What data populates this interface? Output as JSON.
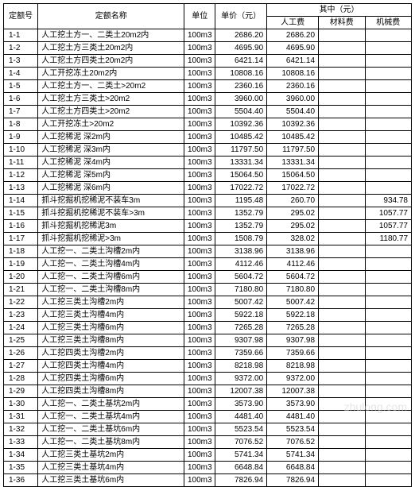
{
  "table": {
    "headers": {
      "id": "定额号",
      "name": "定额名称",
      "unit": "单位",
      "price": "单价（元）",
      "group": "其中（元）",
      "labor": "人工费",
      "material": "材料费",
      "mech": "机械费"
    },
    "rows": [
      [
        "1-1",
        "人工挖土方一、二类土20m2内",
        "100m3",
        "2686.20",
        "2686.20",
        "",
        ""
      ],
      [
        "1-2",
        "人工挖土方三类土20m2内",
        "100m3",
        "4695.90",
        "4695.90",
        "",
        ""
      ],
      [
        "1-3",
        "人工挖土方四类土20m2内",
        "100m3",
        "6421.14",
        "6421.14",
        "",
        ""
      ],
      [
        "1-4",
        "人工开挖冻土20m2内",
        "100m3",
        "10808.16",
        "10808.16",
        "",
        ""
      ],
      [
        "1-5",
        "人工挖土方一、二类土>20m2",
        "100m3",
        "2360.16",
        "2360.16",
        "",
        ""
      ],
      [
        "1-6",
        "人工挖土方三类土>20m2",
        "100m3",
        "3960.00",
        "3960.00",
        "",
        ""
      ],
      [
        "1-7",
        "人工挖土方四类土>20m2",
        "100m3",
        "5504.40",
        "5504.40",
        "",
        ""
      ],
      [
        "1-8",
        "人工开挖冻土>20m2",
        "100m3",
        "10392.36",
        "10392.36",
        "",
        ""
      ],
      [
        "1-9",
        "人工挖稀泥 深2m内",
        "100m3",
        "10485.42",
        "10485.42",
        "",
        ""
      ],
      [
        "1-10",
        "人工挖稀泥 深3m内",
        "100m3",
        "11797.50",
        "11797.50",
        "",
        ""
      ],
      [
        "1-11",
        "人工挖稀泥 深4m内",
        "100m3",
        "13331.34",
        "13331.34",
        "",
        ""
      ],
      [
        "1-12",
        "人工挖稀泥 深5m内",
        "100m3",
        "15064.50",
        "15064.50",
        "",
        ""
      ],
      [
        "1-13",
        "人工挖稀泥 深6m内",
        "100m3",
        "17022.72",
        "17022.72",
        "",
        ""
      ],
      [
        "1-14",
        "抓斗挖掘机挖稀泥不装车3m",
        "100m3",
        "1195.48",
        "260.70",
        "",
        "934.78"
      ],
      [
        "1-15",
        "抓斗挖掘机挖稀泥不装车>3m",
        "100m3",
        "1352.79",
        "295.02",
        "",
        "1057.77"
      ],
      [
        "1-16",
        "抓斗挖掘机挖稀泥3m",
        "100m3",
        "1352.79",
        "295.02",
        "",
        "1057.77"
      ],
      [
        "1-17",
        "抓斗挖掘机挖稀泥>3m",
        "100m3",
        "1508.79",
        "328.02",
        "",
        "1180.77"
      ],
      [
        "1-18",
        "人工挖一、二类土沟槽2m内",
        "100m3",
        "3138.96",
        "3138.96",
        "",
        ""
      ],
      [
        "1-19",
        "人工挖一、二类土沟槽4m内",
        "100m3",
        "4112.46",
        "4112.46",
        "",
        ""
      ],
      [
        "1-20",
        "人工挖一、二类土沟槽6m内",
        "100m3",
        "5604.72",
        "5604.72",
        "",
        ""
      ],
      [
        "1-21",
        "人工挖一、二类土沟槽8m内",
        "100m3",
        "7180.80",
        "7180.80",
        "",
        ""
      ],
      [
        "1-22",
        "人工挖三类土沟槽2m内",
        "100m3",
        "5007.42",
        "5007.42",
        "",
        ""
      ],
      [
        "1-23",
        "人工挖三类土沟槽4m内",
        "100m3",
        "5922.18",
        "5922.18",
        "",
        ""
      ],
      [
        "1-24",
        "人工挖三类土沟槽6m内",
        "100m3",
        "7265.28",
        "7265.28",
        "",
        ""
      ],
      [
        "1-25",
        "人工挖三类土沟槽8m内",
        "100m3",
        "9307.98",
        "9307.98",
        "",
        ""
      ],
      [
        "1-26",
        "人工挖四类土沟槽2m内",
        "100m3",
        "7359.66",
        "7359.66",
        "",
        ""
      ],
      [
        "1-27",
        "人工挖四类土沟槽4m内",
        "100m3",
        "8218.98",
        "8218.98",
        "",
        ""
      ],
      [
        "1-28",
        "人工挖四类土沟槽6m内",
        "100m3",
        "9372.00",
        "9372.00",
        "",
        ""
      ],
      [
        "1-29",
        "人工挖四类土沟槽8m内",
        "100m3",
        "12007.38",
        "12007.38",
        "",
        ""
      ],
      [
        "1-30",
        "人工挖一、二类土基坑2m内",
        "100m3",
        "3573.90",
        "3573.90",
        "",
        ""
      ],
      [
        "1-31",
        "人工挖一、二类土基坑4m内",
        "100m3",
        "4481.40",
        "4481.40",
        "",
        ""
      ],
      [
        "1-32",
        "人工挖一、二类土基坑6m内",
        "100m3",
        "5523.54",
        "5523.54",
        "",
        ""
      ],
      [
        "1-33",
        "人工挖一、二类土基坑8m内",
        "100m3",
        "7076.52",
        "7076.52",
        "",
        ""
      ],
      [
        "1-34",
        "人工挖三类土基坑2m内",
        "100m3",
        "5741.34",
        "5741.34",
        "",
        ""
      ],
      [
        "1-35",
        "人工挖三类土基坑4m内",
        "100m3",
        "6648.84",
        "6648.84",
        "",
        ""
      ],
      [
        "1-36",
        "人工挖三类土基坑6m内",
        "100m3",
        "7826.94",
        "7826.94",
        "",
        ""
      ]
    ]
  },
  "watermark": "zhulong.com"
}
